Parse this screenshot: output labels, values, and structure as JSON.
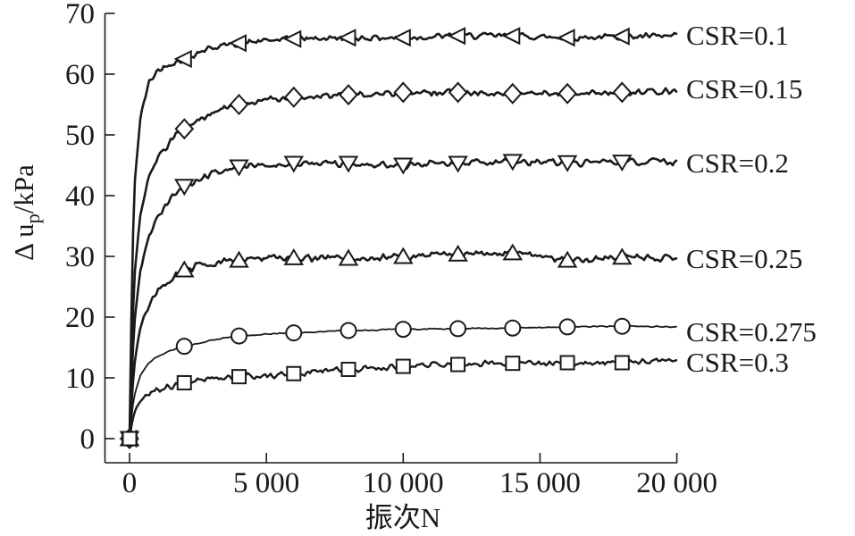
{
  "colors": {
    "ink": "#1a1a1a",
    "background": "#ffffff",
    "marker_fill": "#ffffff"
  },
  "chart_data": {
    "type": "line",
    "title": "",
    "xlabel": "振次N",
    "ylabel": "Δ u_p/kPa",
    "ylabel_parts": {
      "prefix": "Δ u",
      "sub": "p",
      "suffix": "/kPa"
    },
    "xlim": [
      0,
      20000
    ],
    "ylim": [
      0,
      70
    ],
    "xticks": [
      0,
      5000,
      10000,
      15000,
      20000
    ],
    "xtick_labels": [
      "0",
      "5 000",
      "10 000",
      "15 000",
      "20 000"
    ],
    "yticks": [
      0,
      10,
      20,
      30,
      40,
      50,
      60,
      70
    ],
    "ytick_labels": [
      "0",
      "10",
      "20",
      "30",
      "40",
      "50",
      "60",
      "70"
    ],
    "grid": false,
    "legend_position": "right-of-curves",
    "marker_n": [
      0,
      2000,
      4000,
      6000,
      8000,
      10000,
      12000,
      14000,
      16000,
      18000
    ],
    "series": [
      {
        "label": "CSR=0.1",
        "marker": "triangle-left",
        "style": {
          "stroke_width": 2.6,
          "noise_kpa": 0.5
        },
        "points": [
          [
            0,
            0
          ],
          [
            100,
            30
          ],
          [
            200,
            43
          ],
          [
            400,
            53
          ],
          [
            700,
            58.5
          ],
          [
            1000,
            60.5
          ],
          [
            1500,
            61.8
          ],
          [
            2000,
            62.5
          ],
          [
            2500,
            63.6
          ],
          [
            3000,
            64.4
          ],
          [
            4000,
            65.1
          ],
          [
            5000,
            65.5
          ],
          [
            6000,
            65.8
          ],
          [
            8000,
            66
          ],
          [
            10000,
            66
          ],
          [
            12000,
            66.3
          ],
          [
            14000,
            66.3
          ],
          [
            16000,
            66
          ],
          [
            18000,
            66.2
          ],
          [
            20000,
            66.2
          ]
        ]
      },
      {
        "label": "CSR=0.15",
        "marker": "diamond",
        "style": {
          "stroke_width": 2.6,
          "noise_kpa": 0.5
        },
        "points": [
          [
            0,
            0
          ],
          [
            100,
            18
          ],
          [
            200,
            28
          ],
          [
            400,
            37
          ],
          [
            700,
            43
          ],
          [
            1000,
            46
          ],
          [
            1500,
            49
          ],
          [
            2000,
            51
          ],
          [
            2500,
            52.5
          ],
          [
            3000,
            53.6
          ],
          [
            4000,
            55
          ],
          [
            5000,
            55.7
          ],
          [
            6000,
            56.2
          ],
          [
            8000,
            56.6
          ],
          [
            10000,
            57
          ],
          [
            12000,
            57
          ],
          [
            14000,
            56.8
          ],
          [
            16000,
            56.8
          ],
          [
            18000,
            57
          ],
          [
            20000,
            57.2
          ]
        ]
      },
      {
        "label": "CSR=0.2",
        "marker": "triangle-down",
        "style": {
          "stroke_width": 2.6,
          "noise_kpa": 0.55
        },
        "points": [
          [
            0,
            0
          ],
          [
            100,
            13
          ],
          [
            200,
            20
          ],
          [
            400,
            28
          ],
          [
            700,
            33.5
          ],
          [
            1000,
            36.5
          ],
          [
            1500,
            39.5
          ],
          [
            2000,
            41.5
          ],
          [
            2500,
            42.7
          ],
          [
            3000,
            43.5
          ],
          [
            4000,
            44.7
          ],
          [
            5000,
            45
          ],
          [
            6000,
            45.3
          ],
          [
            8000,
            45.3
          ],
          [
            10000,
            45
          ],
          [
            12000,
            45.3
          ],
          [
            14000,
            45.6
          ],
          [
            16000,
            45.4
          ],
          [
            18000,
            45.5
          ],
          [
            20000,
            45.6
          ]
        ]
      },
      {
        "label": "CSR=0.25",
        "marker": "triangle-up",
        "style": {
          "stroke_width": 2.6,
          "noise_kpa": 0.55
        },
        "points": [
          [
            0,
            0
          ],
          [
            100,
            8
          ],
          [
            200,
            13
          ],
          [
            400,
            18.5
          ],
          [
            700,
            22
          ],
          [
            1000,
            24
          ],
          [
            1500,
            26.3
          ],
          [
            2000,
            27.8
          ],
          [
            2500,
            28.4
          ],
          [
            3000,
            28.8
          ],
          [
            4000,
            29.4
          ],
          [
            5000,
            29.7
          ],
          [
            6000,
            29.8
          ],
          [
            8000,
            29.7
          ],
          [
            10000,
            30
          ],
          [
            12000,
            30.4
          ],
          [
            14000,
            30.6
          ],
          [
            15000,
            30
          ],
          [
            16000,
            29.4
          ],
          [
            18000,
            29.9
          ],
          [
            20000,
            29.7
          ]
        ]
      },
      {
        "label": "CSR=0.275",
        "marker": "circle",
        "style": {
          "stroke_width": 1.8,
          "noise_kpa": 0.09
        },
        "points": [
          [
            0,
            0
          ],
          [
            100,
            5
          ],
          [
            200,
            7.5
          ],
          [
            400,
            10.5
          ],
          [
            700,
            12.5
          ],
          [
            1000,
            13.5
          ],
          [
            1500,
            14.5
          ],
          [
            2000,
            15.2
          ],
          [
            3000,
            16.2
          ],
          [
            4000,
            16.9
          ],
          [
            5000,
            17.2
          ],
          [
            6000,
            17.4
          ],
          [
            8000,
            17.8
          ],
          [
            10000,
            18
          ],
          [
            12000,
            18.1
          ],
          [
            14000,
            18.2
          ],
          [
            16000,
            18.4
          ],
          [
            18000,
            18.5
          ],
          [
            20000,
            18.4
          ]
        ]
      },
      {
        "label": "CSR=0.3",
        "marker": "square",
        "style": {
          "stroke_width": 2.4,
          "noise_kpa": 0.5
        },
        "points": [
          [
            0,
            0
          ],
          [
            100,
            3
          ],
          [
            200,
            4.5
          ],
          [
            400,
            6.2
          ],
          [
            700,
            7.3
          ],
          [
            1000,
            7.9
          ],
          [
            1500,
            8.6
          ],
          [
            2000,
            9.2
          ],
          [
            3000,
            9.9
          ],
          [
            4000,
            10.2
          ],
          [
            5000,
            10.4
          ],
          [
            6000,
            10.7
          ],
          [
            8000,
            11.4
          ],
          [
            10000,
            11.9
          ],
          [
            12000,
            12.2
          ],
          [
            14000,
            12.4
          ],
          [
            16000,
            12.5
          ],
          [
            18000,
            12.5
          ],
          [
            20000,
            13
          ]
        ]
      }
    ]
  }
}
